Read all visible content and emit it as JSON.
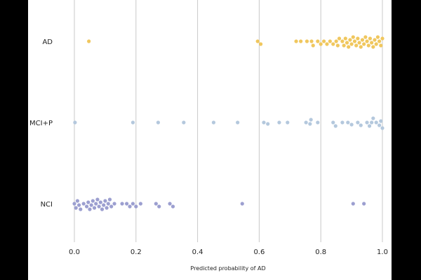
{
  "chart_data": {
    "type": "scatter",
    "subtype": "beeswarm",
    "title": "",
    "xlabel": "Predicted probability of AD",
    "ylabel": "",
    "xlim": [
      0.0,
      1.0
    ],
    "xticks": [
      0.0,
      0.2,
      0.4,
      0.6,
      0.8,
      1.0
    ],
    "xtick_labels": [
      "0.0",
      "0.2",
      "0.4",
      "0.6",
      "0.8",
      "1.0"
    ],
    "grid": "vertical",
    "categories": [
      "AD",
      "MCI+P",
      "NCI"
    ],
    "series": [
      {
        "name": "AD",
        "color": "#f0c75e",
        "values": [
          0.047,
          0.595,
          0.605,
          0.72,
          0.735,
          0.755,
          0.77,
          0.775,
          0.79,
          0.8,
          0.81,
          0.82,
          0.83,
          0.84,
          0.85,
          0.855,
          0.86,
          0.87,
          0.875,
          0.88,
          0.885,
          0.89,
          0.895,
          0.9,
          0.905,
          0.91,
          0.915,
          0.92,
          0.925,
          0.93,
          0.935,
          0.94,
          0.945,
          0.95,
          0.955,
          0.96,
          0.965,
          0.97,
          0.975,
          0.98,
          0.985,
          0.99,
          0.995,
          1.0
        ]
      },
      {
        "name": "MCI+P",
        "color": "#b4c8dd",
        "values": [
          0.002,
          0.19,
          0.272,
          0.355,
          0.452,
          0.53,
          0.615,
          0.628,
          0.665,
          0.692,
          0.752,
          0.765,
          0.768,
          0.79,
          0.84,
          0.848,
          0.87,
          0.888,
          0.9,
          0.92,
          0.93,
          0.95,
          0.958,
          0.965,
          0.97,
          0.98,
          0.99,
          0.995,
          1.0
        ]
      },
      {
        "name": "NCI",
        "color": "#9c9fd0",
        "values": [
          0.0,
          0.005,
          0.01,
          0.015,
          0.02,
          0.03,
          0.04,
          0.045,
          0.05,
          0.055,
          0.06,
          0.065,
          0.07,
          0.075,
          0.08,
          0.085,
          0.09,
          0.095,
          0.1,
          0.105,
          0.11,
          0.115,
          0.12,
          0.13,
          0.155,
          0.17,
          0.18,
          0.19,
          0.2,
          0.215,
          0.265,
          0.275,
          0.31,
          0.32,
          0.545,
          0.905,
          0.94
        ]
      }
    ]
  }
}
